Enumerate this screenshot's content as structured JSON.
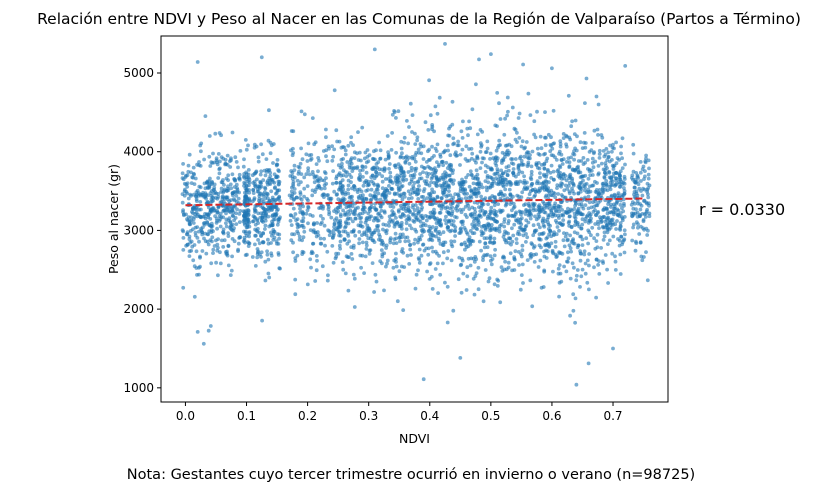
{
  "chart_data": {
    "type": "scatter",
    "title": "Relación entre NDVI y Peso al Nacer en las Comunas de la Región de Valparaíso (Partos a Término)",
    "xlabel": "NDVI",
    "ylabel": "Peso al nacer (gr)",
    "xlim": [
      -0.04,
      0.79
    ],
    "ylim": [
      820,
      5470
    ],
    "x_ticks": [
      "0.0",
      "0.1",
      "0.2",
      "0.3",
      "0.4",
      "0.5",
      "0.6",
      "0.7"
    ],
    "x_tick_values": [
      0.0,
      0.1,
      0.2,
      0.3,
      0.4,
      0.5,
      0.6,
      0.7
    ],
    "y_ticks": [
      "1000",
      "2000",
      "3000",
      "4000",
      "5000"
    ],
    "y_tick_values": [
      1000,
      2000,
      3000,
      4000,
      5000
    ],
    "grid": false,
    "point_color": "#1f77b4",
    "point_alpha": 0.6,
    "n": 98725,
    "clusters": [
      {
        "x_range": [
          -0.005,
          0.06
        ],
        "y_mean": 3320,
        "y_sd": 380,
        "density": 0.8
      },
      {
        "x_range": [
          0.06,
          0.09
        ],
        "y_mean": 3320,
        "y_sd": 330,
        "density": 0.4
      },
      {
        "x_range": [
          0.095,
          0.105
        ],
        "y_mean": 3320,
        "y_sd": 300,
        "density": 0.3
      },
      {
        "x_range": [
          0.11,
          0.155
        ],
        "y_mean": 3320,
        "y_sd": 380,
        "density": 0.7
      },
      {
        "x_range": [
          0.17,
          0.24
        ],
        "y_mean": 3330,
        "y_sd": 380,
        "density": 0.6
      },
      {
        "x_range": [
          0.24,
          0.33
        ],
        "y_mean": 3340,
        "y_sd": 420,
        "density": 1.2
      },
      {
        "x_range": [
          0.33,
          0.68
        ],
        "y_mean": 3370,
        "y_sd": 480,
        "density": 5.0
      },
      {
        "x_range": [
          0.68,
          0.72
        ],
        "y_mean": 3380,
        "y_sd": 380,
        "density": 0.6
      },
      {
        "x_range": [
          0.73,
          0.76
        ],
        "y_mean": 3360,
        "y_sd": 320,
        "density": 0.3
      }
    ],
    "outliers": [
      {
        "x": 0.02,
        "y": 5140
      },
      {
        "x": 0.125,
        "y": 5200
      },
      {
        "x": 0.31,
        "y": 5300
      },
      {
        "x": 0.425,
        "y": 5370
      },
      {
        "x": 0.5,
        "y": 5240
      },
      {
        "x": 0.39,
        "y": 1110
      },
      {
        "x": 0.64,
        "y": 1040
      },
      {
        "x": 0.02,
        "y": 1710
      },
      {
        "x": 0.03,
        "y": 1560
      },
      {
        "x": 0.72,
        "y": 5090
      },
      {
        "x": 0.6,
        "y": 5060
      },
      {
        "x": 0.45,
        "y": 1380
      },
      {
        "x": 0.66,
        "y": 1310
      },
      {
        "x": 0.7,
        "y": 1500
      }
    ],
    "regression_line": {
      "x": [
        0.0,
        0.75
      ],
      "y": [
        3320,
        3405
      ],
      "color": "#d62728",
      "style": "dashed"
    },
    "annotation": "r = 0.0330",
    "note": "Nota: Gestantes cuyo tercer trimestre ocurrió en invierno o verano (n=98725)"
  }
}
